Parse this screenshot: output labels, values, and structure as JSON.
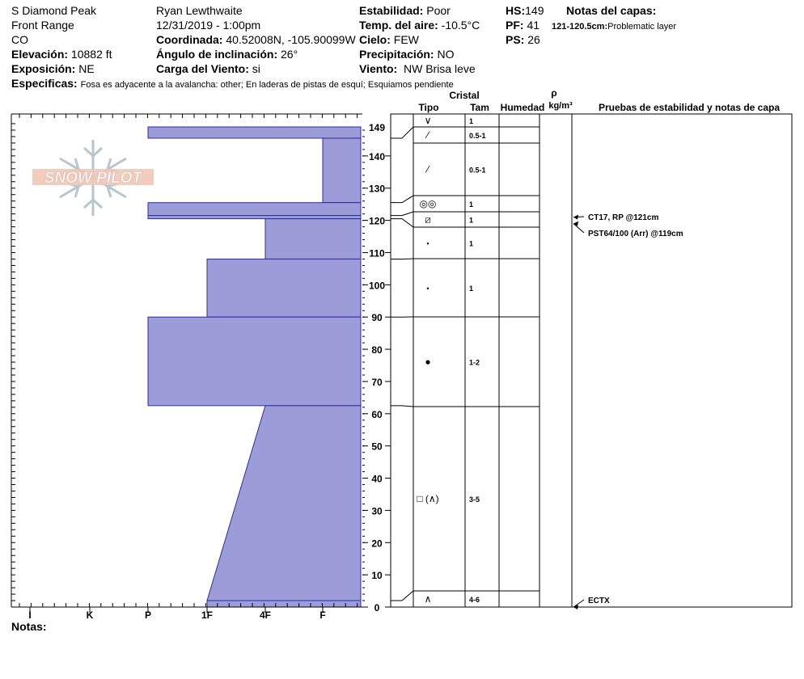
{
  "header": {
    "location": "S Diamond Peak",
    "range": "Front Range",
    "state": "CO",
    "elevation_label": "Elevación:",
    "elevation": "10882 ft",
    "aspect_label": "Exposición:",
    "aspect": "NE",
    "observer": "Ryan Lewthwaite",
    "datetime": "12/31/2019 - 1:00pm",
    "coord_label": "Coordinada:",
    "coord": "40.52008N, -105.90099W",
    "slope_label": "Ángulo de inclinación:",
    "slope": "26°",
    "wind_load_label": "Carga del Viento:",
    "wind_load": "si",
    "stability_label": "Estabilidad:",
    "stability": "Poor",
    "air_temp_label": "Temp. del aire:",
    "air_temp": "-10.5°C",
    "sky_label": "Cielo:",
    "sky": "FEW",
    "precip_label": "Precipitación:",
    "precip": "NO",
    "wind_label": "Viento:",
    "wind": "NW Brisa leve",
    "hs_label": "HS:",
    "hs": "149",
    "pf_label": "PF:",
    "pf": "41",
    "ps_label": "PS:",
    "ps": "26",
    "layer_notes_label": "Notas del capas:",
    "layer_note_range": "121-120.5cm:",
    "layer_note_text": "Problematic layer",
    "specifics_label": "Especificas:",
    "specifics": "Fosa es adyacente a la avalancha: other;  En laderas de pistas de esquí;  Esquiamos pendiente",
    "notes_label": "Notas:"
  },
  "table_headers": {
    "cristal": "Cristal",
    "tipo": "Tipo",
    "tam": "Tam",
    "humedad": "Humedad",
    "rho": "ρ",
    "density_unit": "kg/m³",
    "tests": "Pruebas de estabilidad y notas de capa"
  },
  "logo_text": "SNOW PILOT",
  "chart_data": {
    "type": "bar",
    "title": "",
    "xlabel": "",
    "ylabel": "",
    "hardness_categories": [
      "I",
      "K",
      "P",
      "1F",
      "4F",
      "F"
    ],
    "y_ticks": [
      0,
      10,
      20,
      30,
      40,
      50,
      60,
      70,
      80,
      90,
      100,
      110,
      120,
      130,
      140
    ],
    "top_label": "149",
    "ylim": [
      0,
      149
    ],
    "layers": [
      {
        "top": 149,
        "bottom": 145.5,
        "hardness": "P",
        "crystal_symbol": "∨",
        "size": "1"
      },
      {
        "top": 145.5,
        "bottom": 125.5,
        "hardness": "4F+",
        "crystal_symbol": "⁄",
        "size": "0.5-1"
      },
      {
        "top": 125.5,
        "bottom": 121.5,
        "hardness": "P",
        "crystal_symbol": "◎◎",
        "size": "1"
      },
      {
        "top": 121.5,
        "bottom": 120.5,
        "hardness": "P",
        "crystal_symbol": "⧄",
        "size": "1"
      },
      {
        "top": 120.5,
        "bottom": 108,
        "hardness": "4F-",
        "crystal_symbol": "•",
        "size": "1"
      },
      {
        "top": 108,
        "bottom": 90,
        "hardness": "1F+",
        "crystal_symbol": "•",
        "size": "1"
      },
      {
        "top": 90,
        "bottom": 62.5,
        "hardness": "P",
        "crystal_symbol": "●",
        "size": "1-2"
      },
      {
        "top": 62.5,
        "bottom": 2,
        "hardness": "4F→1F",
        "crystal_symbol": "□ (∧)",
        "size": "3-5"
      },
      {
        "top": 2,
        "bottom": 0,
        "hardness": "1F",
        "crystal_symbol": "∧",
        "size": "4-6"
      }
    ],
    "tests": [
      {
        "label": "CT17, RP @121cm",
        "depth": 121
      },
      {
        "label": "PST64/100 (Arr) @119cm",
        "depth": 119
      },
      {
        "label": "ECTX",
        "depth": 0
      }
    ]
  }
}
